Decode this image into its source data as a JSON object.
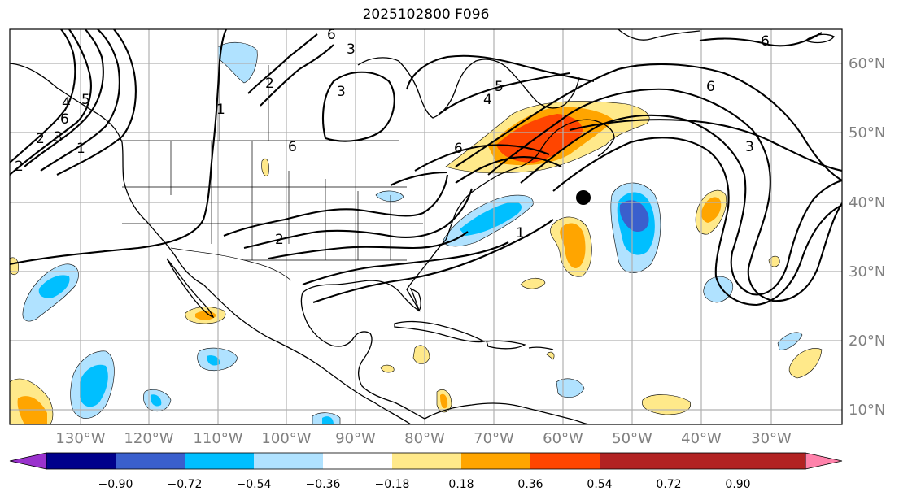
{
  "title": "2025102800 F096",
  "map": {
    "lon_labels": [
      "130°W",
      "120°W",
      "110°W",
      "100°W",
      "90°W",
      "80°W",
      "70°W",
      "60°W",
      "50°W",
      "40°W",
      "30°W"
    ],
    "lat_labels": [
      "60°N",
      "50°N",
      "40°N",
      "30°N",
      "20°N",
      "10°N"
    ],
    "contour_labels": [
      "6",
      "2",
      "3",
      "4",
      "5",
      "6",
      "3",
      "1",
      "2",
      "3",
      "6",
      "4",
      "5",
      "6",
      "3",
      "1",
      "2",
      "6",
      "1",
      "2",
      "6"
    ]
  },
  "colorbar": {
    "colors": [
      "#9a32cd",
      "#00008b",
      "#3a5fcd",
      "#00bfff",
      "#b0e2ff",
      "#ffffff",
      "#ffe98a",
      "#ffa500",
      "#ff4500",
      "#b22222",
      "#ff82ab"
    ],
    "tick_labels": [
      "−0.90",
      "−0.72",
      "−0.54",
      "−0.36",
      "−0.18",
      "0.18",
      "0.36",
      "0.54",
      "0.72",
      "0.90"
    ]
  }
}
